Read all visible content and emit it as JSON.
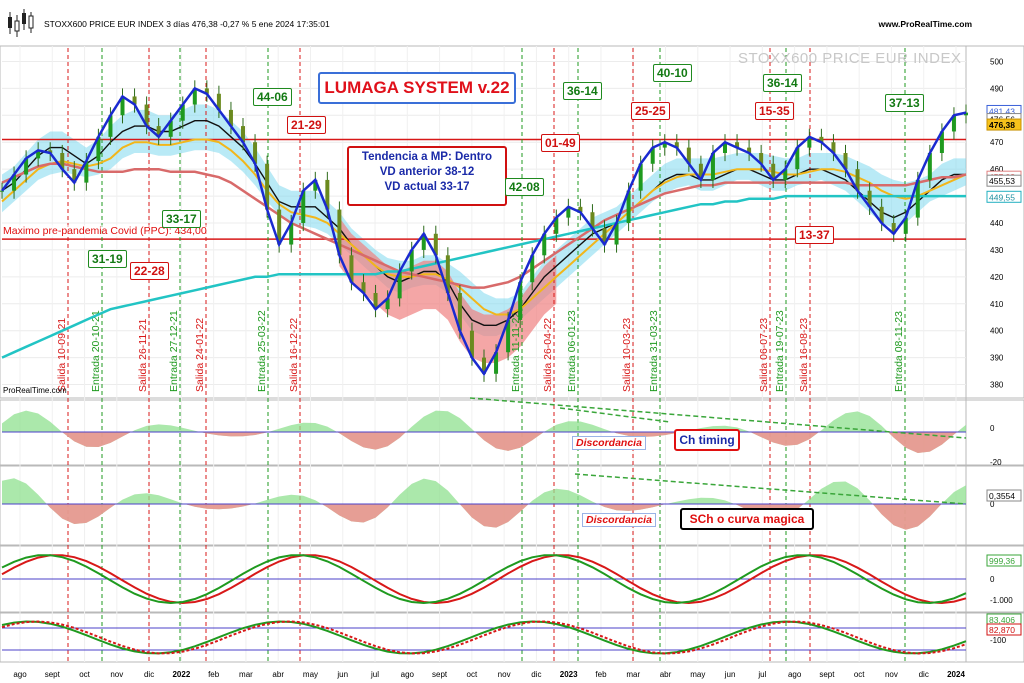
{
  "header": {
    "title": "STOXX600 PRICE EUR INDEX 3 días 476,38 -0,27 % 5 ene 2024 17:35:01",
    "site": "www.ProRealTime.com",
    "watermark": "STOXX600 PRICE EUR INDEX",
    "footer_brand": "ProRealTime.com"
  },
  "annotations": {
    "system_title": "LUMAGA SYSTEM v.22",
    "trend_line1": "Tendencia a MP: Dentro",
    "trend_line2": "VD anterior 38-12",
    "trend_line3": "VD actual 33-17",
    "covid_label": "Maximo pre-pandemia Covid (PPC): 434,00",
    "ch_timing": "Ch timing",
    "sch_label": "SCh o curva magica",
    "discordancia_1": "Discordancia",
    "discordancia_2": "Discordancia"
  },
  "colors": {
    "price_blue": "#1a2ad0",
    "green": "#1f9a1f",
    "red": "#d81818",
    "cloud": "#7fd8ef",
    "cloud_red": "#f08080",
    "teal": "#22c4c4",
    "yellow": "#f2b61a",
    "purple": "#5a50d0"
  },
  "chart_data": {
    "type": "line",
    "title": "STOXX600 PRICE EUR INDEX",
    "x_ticks": [
      "ago",
      "sept",
      "oct",
      "nov",
      "dic",
      "2022",
      "feb",
      "mar",
      "abr",
      "may",
      "jun",
      "jul",
      "ago",
      "sept",
      "oct",
      "nov",
      "dic",
      "2023",
      "feb",
      "mar",
      "abr",
      "may",
      "jun",
      "jul",
      "ago",
      "sept",
      "oct",
      "nov",
      "dic",
      "2024"
    ],
    "y_ticks": [
      "500",
      "490",
      "480",
      "470",
      "460",
      "450",
      "440",
      "430",
      "420",
      "410",
      "400",
      "390",
      "380"
    ],
    "ylim": [
      375,
      505
    ],
    "current_labels": [
      "481,43",
      "476,56",
      "476,38",
      "457,02",
      "455,53",
      "449,55"
    ],
    "series": [
      {
        "name": "",
        "type": "price",
        "values": [
          452,
          458,
          464,
          467,
          466,
          460,
          455,
          463,
          472,
          480,
          487,
          484,
          476,
          472,
          478,
          484,
          490,
          488,
          482,
          476,
          470,
          462,
          445,
          432,
          440,
          452,
          456,
          445,
          428,
          418,
          414,
          408,
          412,
          422,
          430,
          436,
          428,
          414,
          400,
          390,
          384,
          392,
          404,
          418,
          428,
          436,
          442,
          446,
          444,
          438,
          432,
          440,
          452,
          462,
          468,
          470,
          468,
          462,
          456,
          466,
          470,
          468,
          466,
          462,
          456,
          460,
          468,
          472,
          470,
          466,
          460,
          452,
          446,
          440,
          436,
          442,
          456,
          466,
          474,
          480,
          481
        ]
      },
      {
        "name": "",
        "type": "kijun",
        "values": [
          452,
          455,
          460,
          465,
          468,
          468,
          465,
          462,
          465,
          470,
          474,
          476,
          476,
          474,
          474,
          476,
          478,
          478,
          476,
          472,
          468,
          462,
          455,
          448,
          446,
          446,
          446,
          442,
          438,
          432,
          428,
          424,
          420,
          418,
          420,
          422,
          422,
          418,
          410,
          404,
          402,
          402,
          404,
          408,
          414,
          420,
          424,
          428,
          432,
          436,
          438,
          440,
          444,
          448,
          452,
          456,
          458,
          458,
          456,
          456,
          458,
          460,
          460,
          458,
          456,
          456,
          458,
          460,
          460,
          458,
          456,
          452,
          448,
          444,
          442,
          444,
          448,
          452,
          456,
          458,
          458
        ]
      },
      {
        "name": "",
        "type": "ma_short",
        "values": [
          448,
          452,
          456,
          460,
          462,
          463,
          462,
          461,
          462,
          464,
          468,
          470,
          470,
          469,
          469,
          470,
          471,
          471,
          470,
          467,
          463,
          458,
          452,
          447,
          444,
          443,
          442,
          440,
          436,
          432,
          428,
          424,
          421,
          420,
          420,
          421,
          421,
          419,
          416,
          412,
          408,
          406,
          406,
          408,
          412,
          416,
          420,
          424,
          428,
          432,
          436,
          440,
          444,
          448,
          452,
          455,
          457,
          458,
          458,
          458,
          459,
          460,
          460,
          460,
          459,
          458,
          458,
          459,
          460,
          460,
          459,
          457,
          455,
          452,
          450,
          449,
          450,
          452,
          454,
          456,
          458
        ]
      },
      {
        "name": "",
        "type": "ma_mid",
        "values": [
          455,
          457,
          459,
          461,
          462,
          462,
          461,
          460,
          459,
          459,
          459,
          460,
          460,
          460,
          459,
          459,
          459,
          458,
          457,
          455,
          452,
          449,
          446,
          443,
          440,
          438,
          436,
          434,
          432,
          430,
          428,
          426,
          424,
          422,
          421,
          420,
          419,
          418,
          417,
          416,
          416,
          417,
          418,
          420,
          423,
          426,
          429,
          432,
          435,
          438,
          441,
          443,
          445,
          447,
          449,
          451,
          452,
          453,
          454,
          454,
          455,
          455,
          455,
          455,
          455,
          455,
          455,
          455,
          455,
          455,
          455,
          454,
          454,
          454,
          454,
          454,
          455,
          456,
          457,
          457,
          458
        ]
      },
      {
        "name": "",
        "type": "ma_long",
        "values": [
          390,
          392,
          394,
          396,
          398,
          400,
          402,
          404,
          406,
          408,
          409,
          410,
          411,
          412,
          413,
          414,
          415,
          416,
          417,
          418,
          419,
          420,
          420,
          421,
          421,
          421,
          421,
          421,
          421,
          421,
          421,
          421,
          422,
          422,
          423,
          424,
          425,
          426,
          427,
          428,
          429,
          430,
          431,
          432,
          433,
          434,
          435,
          436,
          437,
          438,
          439,
          440,
          441,
          442,
          443,
          444,
          445,
          446,
          447,
          447,
          448,
          448,
          449,
          449,
          449,
          450,
          450,
          450,
          450,
          450,
          450,
          450,
          450,
          450,
          450,
          450,
          450,
          450,
          450,
          450,
          450
        ]
      }
    ],
    "entry_exit_signals": [
      {
        "label": "Salida 10-09-21",
        "type": "exit"
      },
      {
        "label": "Entrada 20-10-21",
        "type": "entry"
      },
      {
        "label": "Salida 26-11-21",
        "type": "exit"
      },
      {
        "label": "Entrada 27-12-21",
        "type": "entry"
      },
      {
        "label": "Salida 24-01-22",
        "type": "exit"
      },
      {
        "label": "Entrada 25-03-22",
        "type": "entry"
      },
      {
        "label": "Salida 16-12-22",
        "type": "exit"
      },
      {
        "label": "Entrada 11-11-22",
        "type": "entry"
      },
      {
        "label": "Salida 26-04-22",
        "type": "exit"
      },
      {
        "label": "Entrada 06-01-23",
        "type": "entry"
      },
      {
        "label": "Salida 10-03-23",
        "type": "exit"
      },
      {
        "label": "Entrada 31-03-23",
        "type": "entry"
      },
      {
        "label": "Salida 06-07-23",
        "type": "exit"
      },
      {
        "label": "Entrada 19-07-23",
        "type": "entry"
      },
      {
        "label": "Salida 16-08-23",
        "type": "exit"
      },
      {
        "label": "Entrada 08-11-23",
        "type": "entry"
      }
    ],
    "count_labels": [
      {
        "text": "31-19",
        "color": "green"
      },
      {
        "text": "22-28",
        "color": "red"
      },
      {
        "text": "33-17",
        "color": "green"
      },
      {
        "text": "44-06",
        "color": "green"
      },
      {
        "text": "21-29",
        "color": "red"
      },
      {
        "text": "42-08",
        "color": "green"
      },
      {
        "text": "36-14",
        "color": "green"
      },
      {
        "text": "01-49",
        "color": "red"
      },
      {
        "text": "25-25",
        "color": "red"
      },
      {
        "text": "40-10",
        "color": "green"
      },
      {
        "text": "36-14",
        "color": "green"
      },
      {
        "text": "15-35",
        "color": "red"
      },
      {
        "text": "13-37",
        "color": "red"
      },
      {
        "text": "37-13",
        "color": "green"
      }
    ],
    "reference_line": {
      "value": 434,
      "label": "Maximo pre-pandemia Covid (PPC): 434,00"
    },
    "panels": [
      {
        "name": "Ch timing",
        "ticks": [
          "0",
          "-20"
        ],
        "value_labels": []
      },
      {
        "name": "SCh o curva magica",
        "ticks": [
          "0"
        ],
        "value_labels": [
          "0,3554"
        ]
      },
      {
        "name": "",
        "ticks": [
          "0",
          "-1.000"
        ],
        "value_labels": [
          "999,36"
        ]
      },
      {
        "name": "",
        "ticks": [
          "-100"
        ],
        "value_labels": [
          "83,406",
          "82,870"
        ]
      }
    ]
  }
}
